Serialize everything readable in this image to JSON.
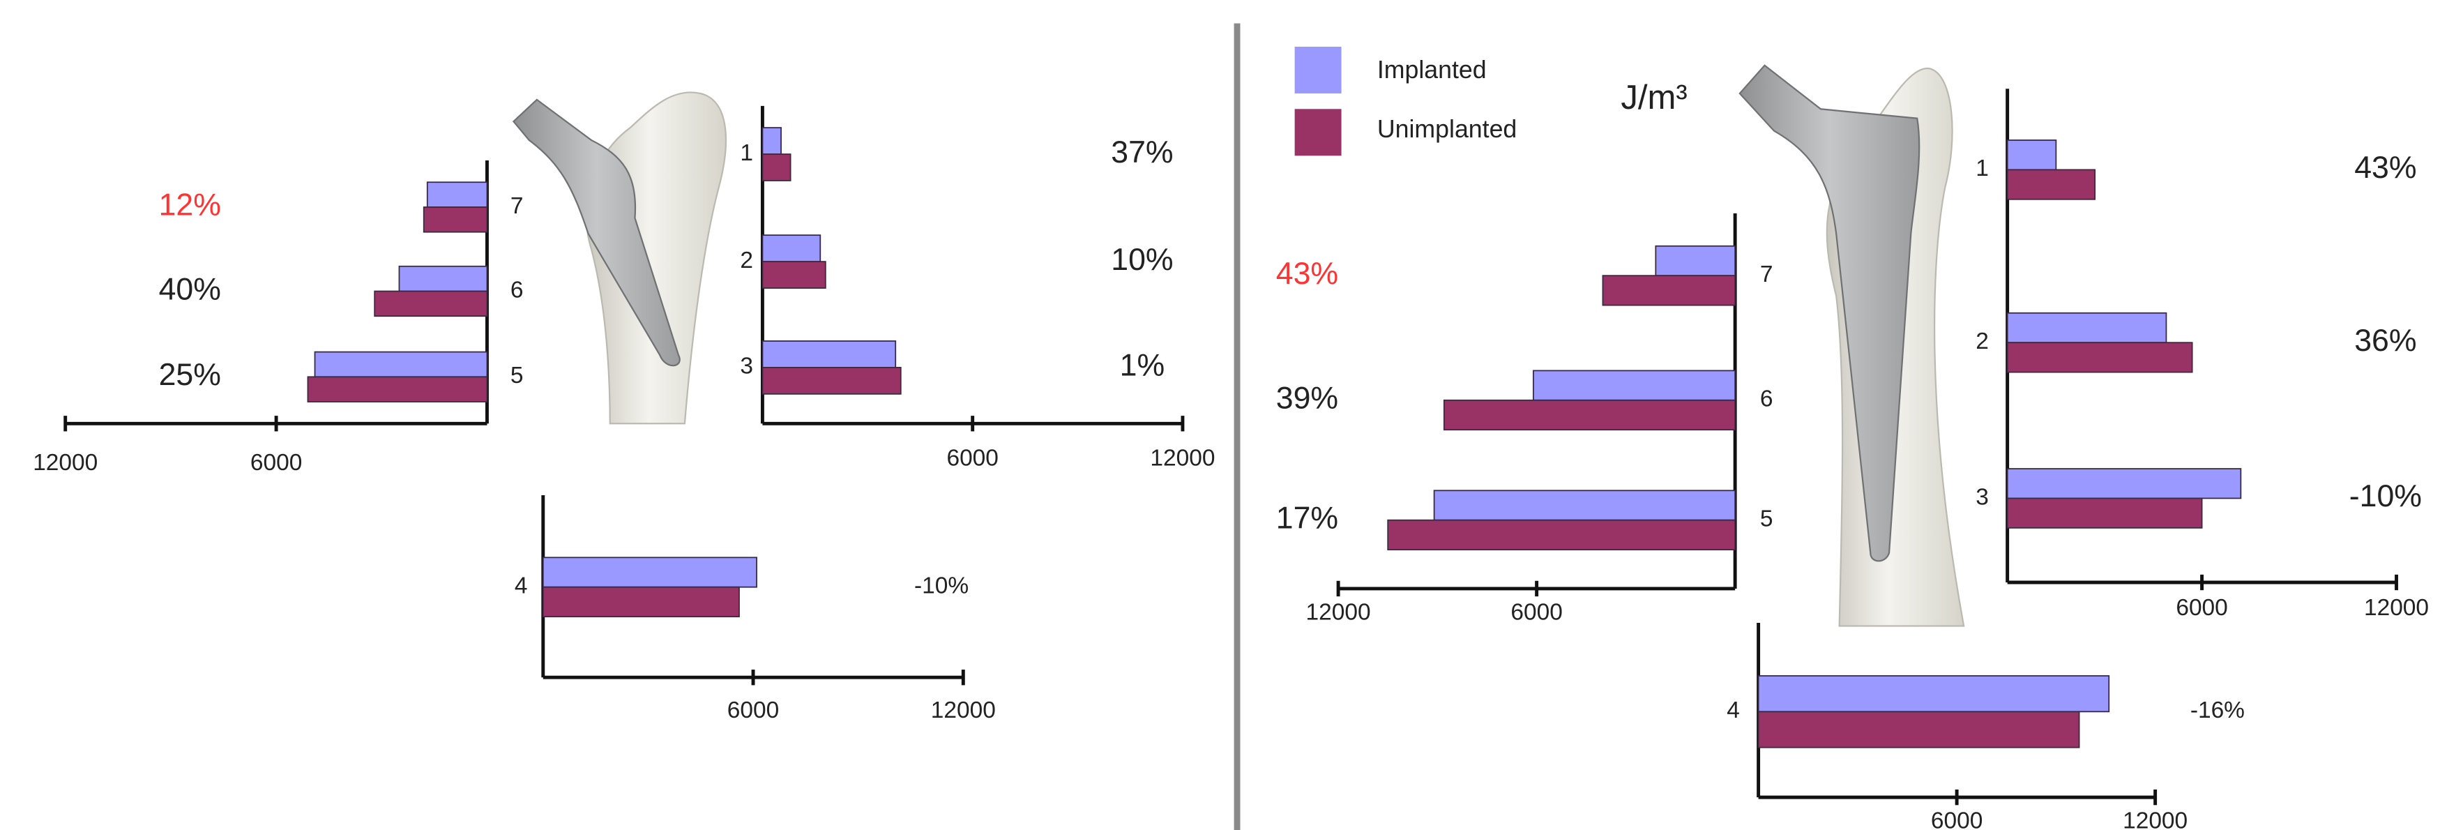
{
  "legend": {
    "items": [
      {
        "name": "Implanted",
        "color": "#9999ff"
      },
      {
        "name": "Unimplanted",
        "color": "#993366"
      }
    ]
  },
  "unit": "J/m³",
  "chart_data": [
    {
      "type": "hbar",
      "categories": [
        "7",
        "6",
        "5"
      ],
      "series": [
        {
          "values": [
            1700,
            2500,
            4900
          ]
        },
        {
          "values": [
            1800,
            3200,
            5100
          ]
        }
      ],
      "annotations": [
        {
          "text": "12%",
          "color": "#ff3333"
        },
        {
          "text": "40%",
          "color": "#222222"
        },
        {
          "text": "25%",
          "color": "#222222"
        }
      ],
      "xlim": [
        12000,
        0
      ],
      "xticks": [
        12000,
        6000
      ]
    },
    {
      "type": "hbar",
      "categories": [
        "1",
        "2",
        "3"
      ],
      "series": [
        {
          "values": [
            530,
            1650,
            3800
          ]
        },
        {
          "values": [
            800,
            1800,
            3950
          ]
        }
      ],
      "annotations": [
        {
          "text": "37%",
          "color": "#222222"
        },
        {
          "text": "10%",
          "color": "#222222"
        },
        {
          "text": "1%",
          "color": "#222222"
        }
      ],
      "xlim": [
        0,
        12000
      ],
      "xticks": [
        6000,
        12000
      ]
    },
    {
      "type": "hbar",
      "categories": [
        "4"
      ],
      "series": [
        {
          "values": [
            6100
          ]
        },
        {
          "values": [
            5600
          ]
        }
      ],
      "annotations": [
        {
          "text": "-10%",
          "color": "#222222"
        }
      ],
      "xlim": [
        0,
        12000
      ],
      "xticks": [
        6000,
        12000
      ]
    },
    {
      "type": "hbar",
      "categories": [
        "7",
        "6",
        "5"
      ],
      "series": [
        {
          "values": [
            2400,
            6100,
            9100
          ]
        },
        {
          "values": [
            4000,
            8800,
            10500
          ]
        }
      ],
      "annotations": [
        {
          "text": "43%",
          "color": "#ff3333"
        },
        {
          "text": "39%",
          "color": "#222222"
        },
        {
          "text": "17%",
          "color": "#222222"
        }
      ],
      "xlim": [
        12000,
        0
      ],
      "xticks": [
        12000,
        6000
      ]
    },
    {
      "type": "hbar",
      "categories": [
        "1",
        "2",
        "3"
      ],
      "series": [
        {
          "values": [
            1500,
            4900,
            7200
          ]
        },
        {
          "values": [
            2700,
            5700,
            6000
          ]
        }
      ],
      "annotations": [
        {
          "text": "43%",
          "color": "#222222"
        },
        {
          "text": "36%",
          "color": "#222222"
        },
        {
          "text": "-10%",
          "color": "#222222"
        }
      ],
      "xlim": [
        0,
        12000
      ],
      "xticks": [
        6000,
        12000
      ]
    },
    {
      "type": "hbar",
      "categories": [
        "4"
      ],
      "series": [
        {
          "values": [
            10600
          ]
        },
        {
          "values": [
            9700
          ]
        }
      ],
      "annotations": [
        {
          "text": "-16%",
          "color": "#222222"
        }
      ],
      "xlim": [
        0,
        12000
      ],
      "xticks": [
        6000,
        12000
      ]
    }
  ]
}
